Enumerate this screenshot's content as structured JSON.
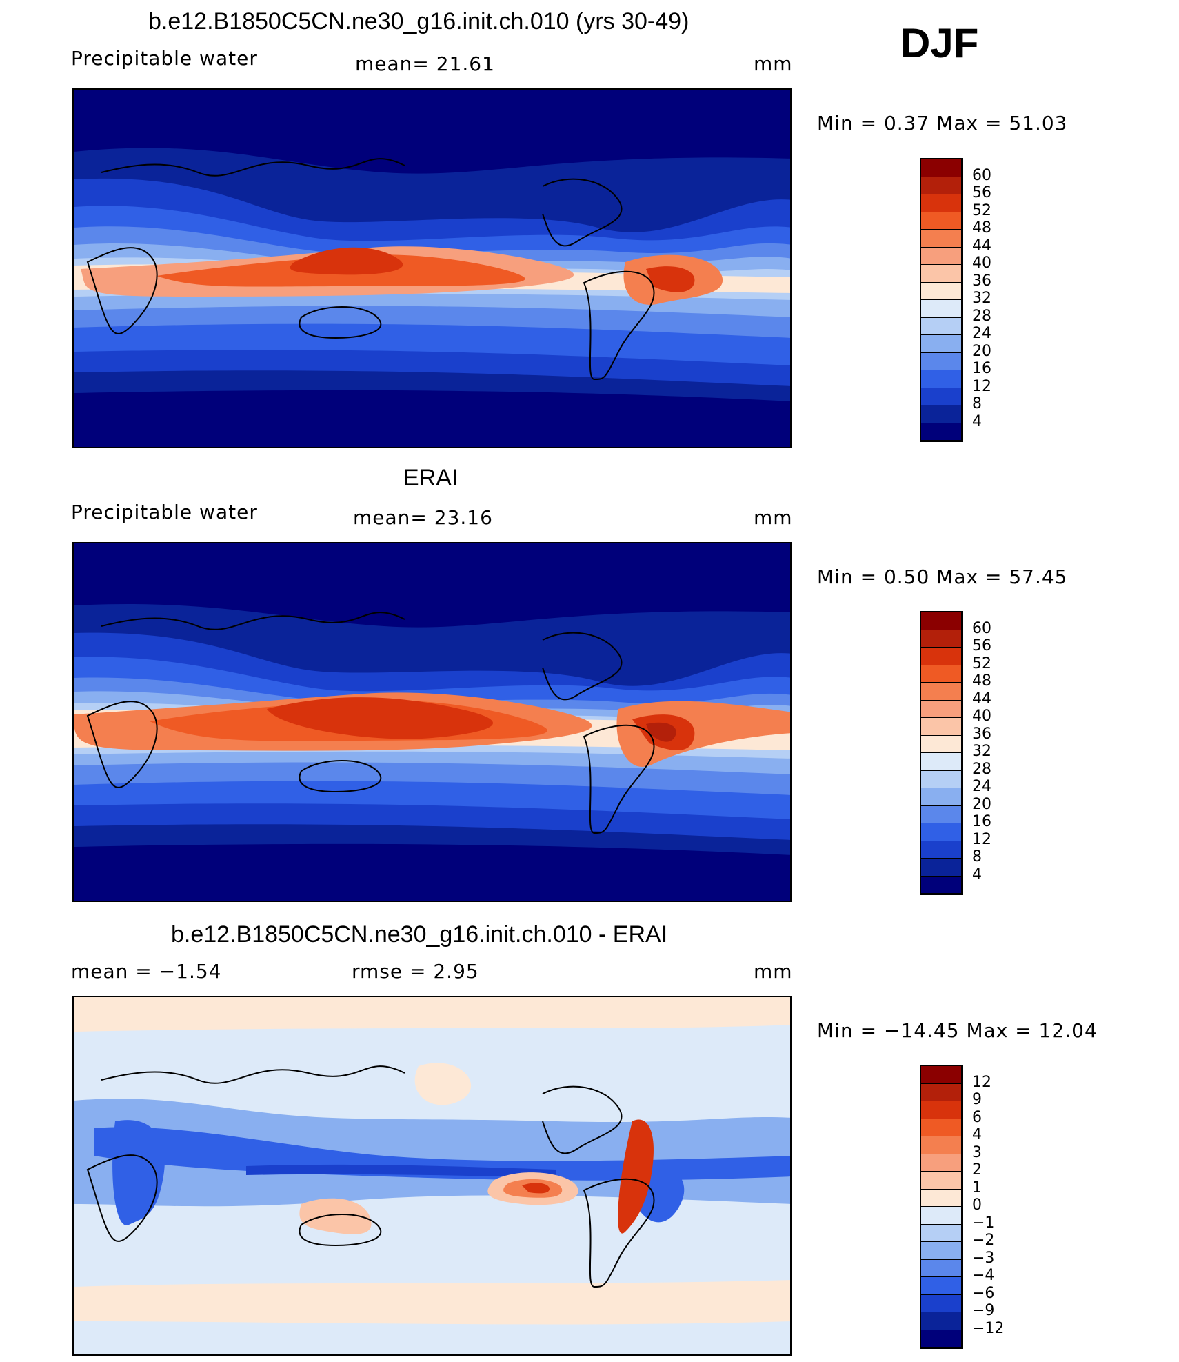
{
  "season": "DJF",
  "panels": [
    {
      "id": "model",
      "title": "b.e12.B1850C5CN.ne30_g16.init.ch.010 (yrs 30-49)",
      "left_label": "Precipitable  water",
      "stat_label": "mean=   21.61",
      "units": "mm",
      "minmax": "Min  =     0.37  Max  =    51.03",
      "levels": [
        "60",
        "56",
        "52",
        "48",
        "44",
        "40",
        "36",
        "32",
        "28",
        "24",
        "20",
        "16",
        "12",
        "8",
        "4"
      ],
      "colors": [
        "#8b0000",
        "#b3200a",
        "#d8330c",
        "#ef5a24",
        "#f47f4f",
        "#f79f7d",
        "#fbc5a8",
        "#fde8d6",
        "#ddeaf9",
        "#b5cff5",
        "#89aff0",
        "#5b87eb",
        "#3060e6",
        "#1a40cc",
        "#0a2399",
        "#00007a"
      ]
    },
    {
      "id": "obs",
      "title": "ERAI",
      "left_label": "Precipitable  water",
      "stat_label": "mean=   23.16",
      "units": "mm",
      "minmax": "Min  =     0.50  Max  =    57.45",
      "levels": [
        "60",
        "56",
        "52",
        "48",
        "44",
        "40",
        "36",
        "32",
        "28",
        "24",
        "20",
        "16",
        "12",
        "8",
        "4"
      ],
      "colors": [
        "#8b0000",
        "#b3200a",
        "#d8330c",
        "#ef5a24",
        "#f47f4f",
        "#f79f7d",
        "#fbc5a8",
        "#fde8d6",
        "#ddeaf9",
        "#b5cff5",
        "#89aff0",
        "#5b87eb",
        "#3060e6",
        "#1a40cc",
        "#0a2399",
        "#00007a"
      ]
    },
    {
      "id": "diff",
      "title": "b.e12.B1850C5CN.ne30_g16.init.ch.010 - ERAI",
      "left_label": "mean  =    −1.54",
      "stat_label": "rmse  =     2.95",
      "units": "mm",
      "minmax": "Min  =  −14.45  Max  =    12.04",
      "levels": [
        "12",
        "9",
        "6",
        "4",
        "3",
        "2",
        "1",
        "0",
        "−1",
        "−2",
        "−3",
        "−4",
        "−6",
        "−9",
        "−12"
      ],
      "colors": [
        "#8b0000",
        "#b3200a",
        "#d8330c",
        "#ef5a24",
        "#f47f4f",
        "#f79f7d",
        "#fbc5a8",
        "#fde8d6",
        "#ddeaf9",
        "#b5cff5",
        "#89aff0",
        "#5b87eb",
        "#3060e6",
        "#1a40cc",
        "#0a2399",
        "#00007a"
      ]
    }
  ]
}
